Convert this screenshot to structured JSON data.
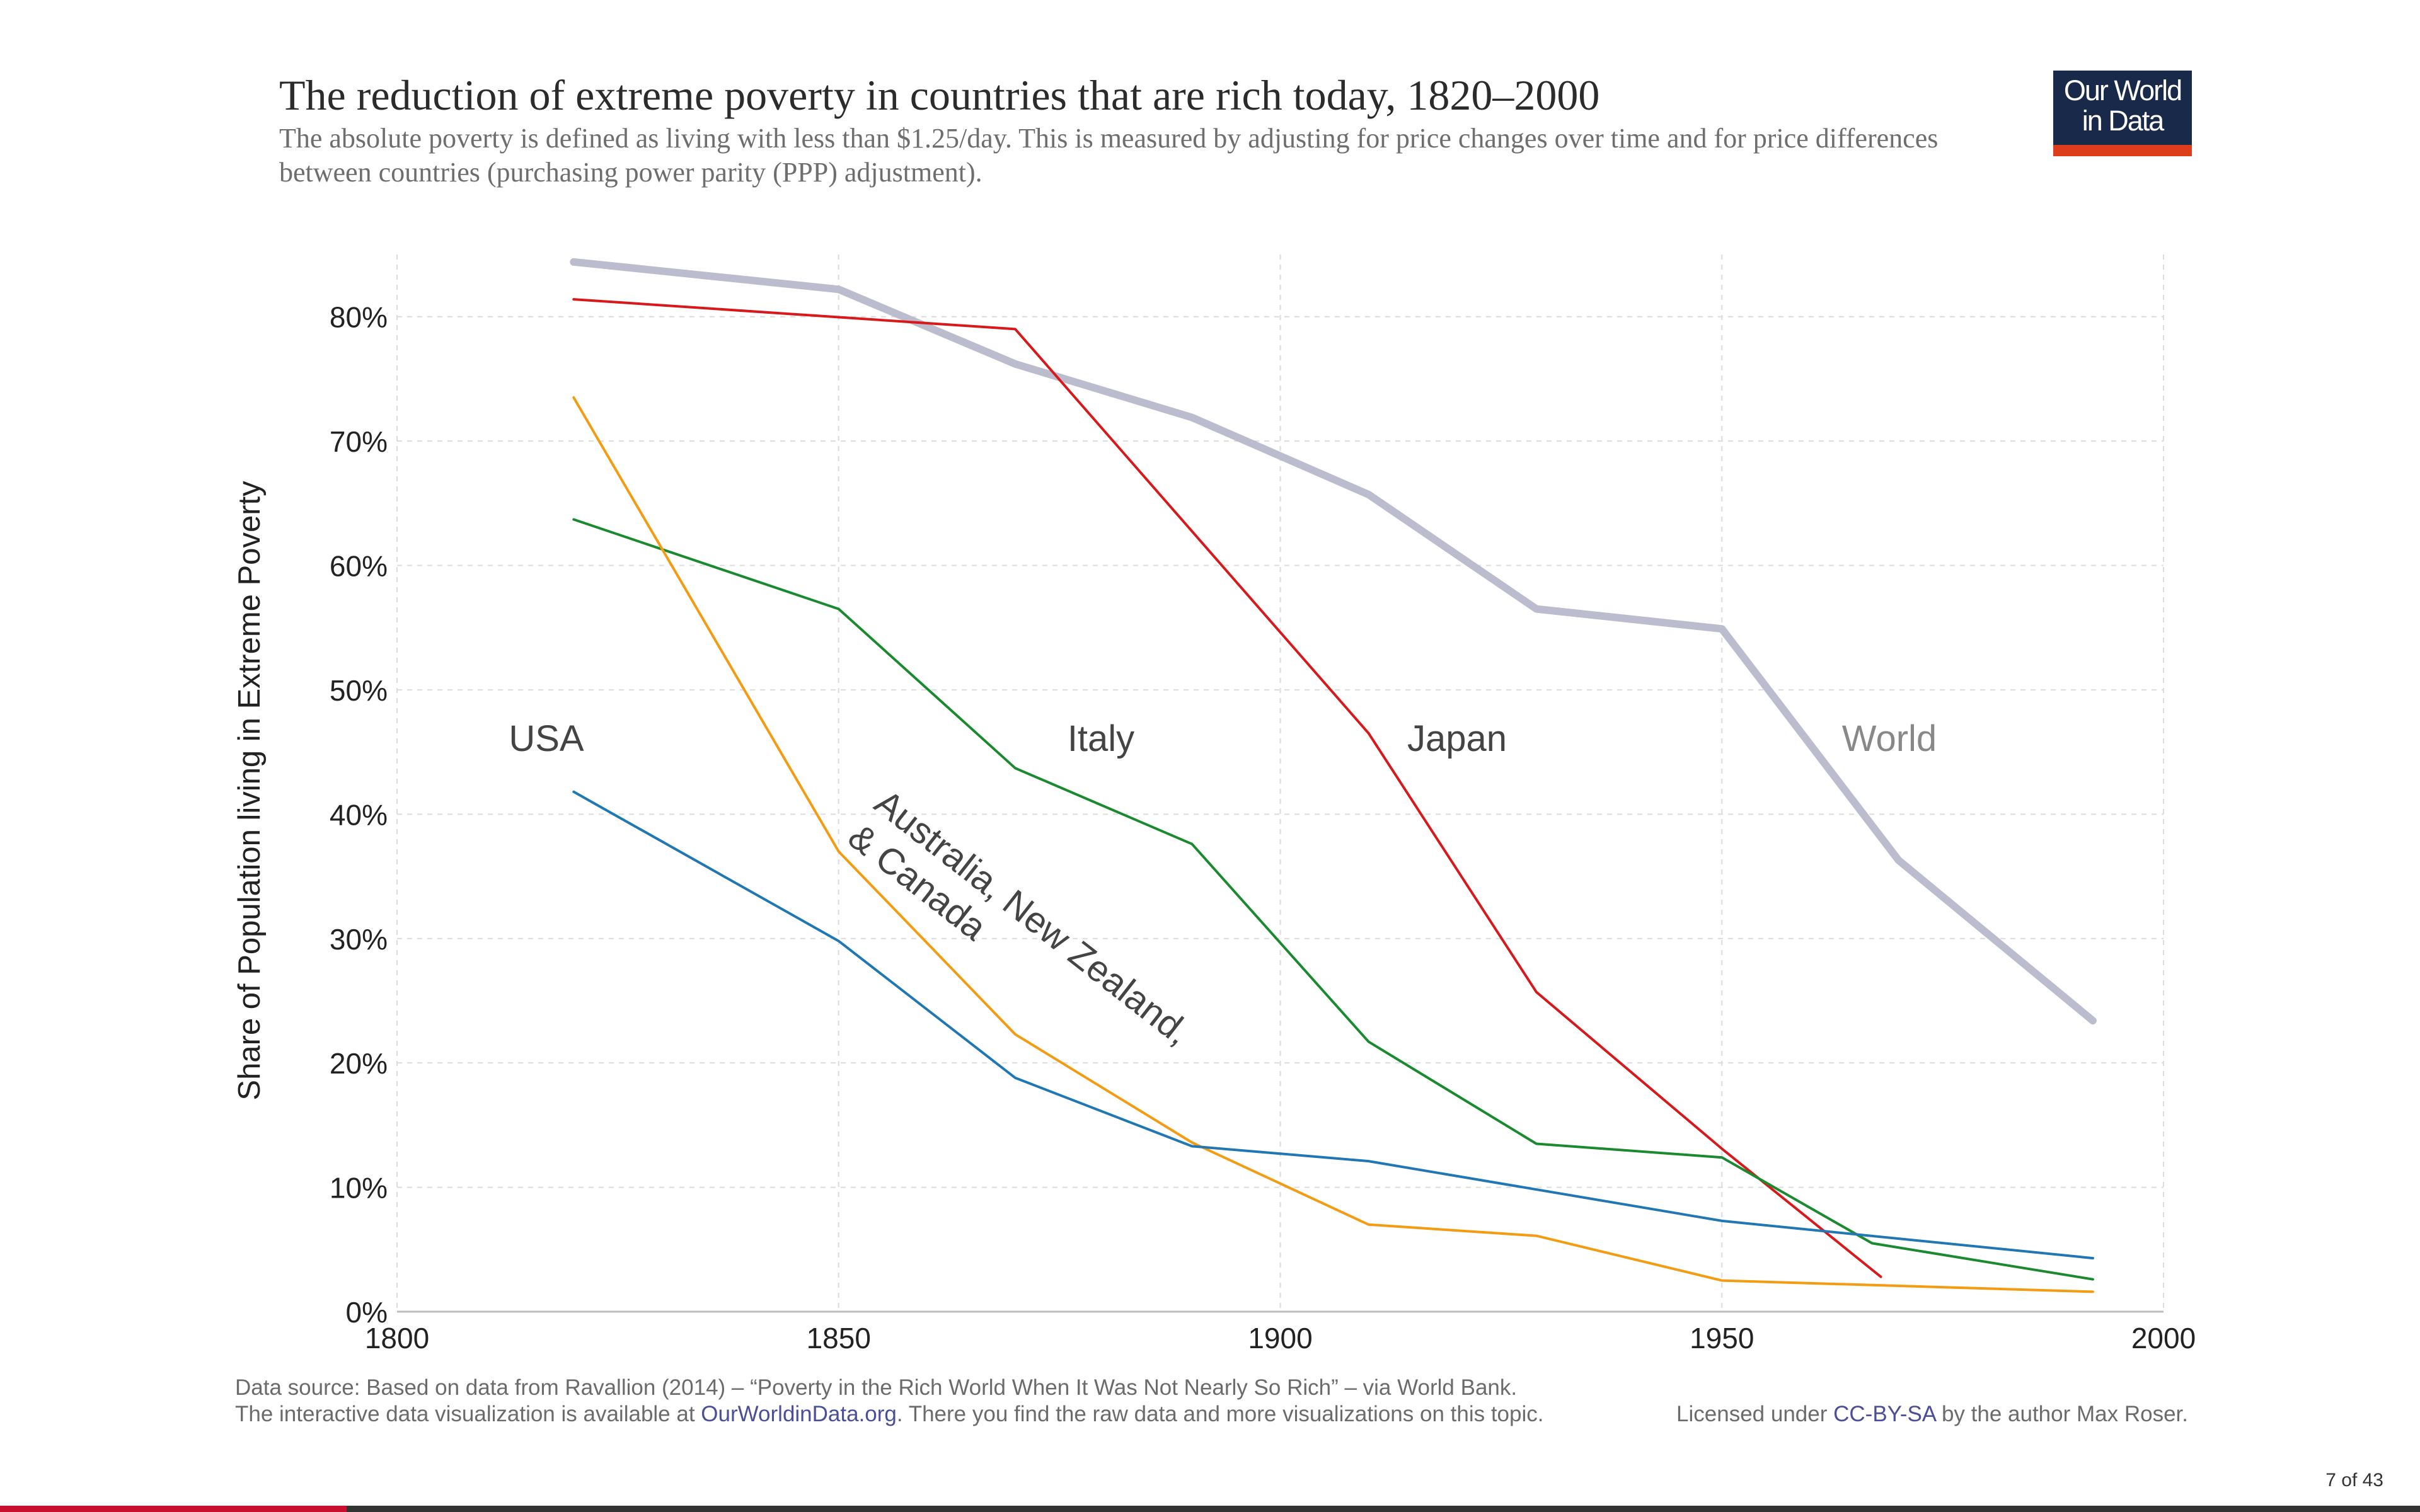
{
  "title": "The reduction of extreme poverty in countries that are rich today, 1820–2000",
  "subtitle": "The absolute poverty is defined as living with less than $1.25/day. This is measured by adjusting for price changes over time and for price differences between countries (purchasing power parity (PPP) adjustment).",
  "logo": {
    "line1": "Our World",
    "line2": "in Data",
    "bg_color": "#18294a",
    "accent_color": "#dc3e1b"
  },
  "chart_data": {
    "type": "line",
    "title": "The reduction of extreme poverty in countries that are rich today, 1820–2000",
    "xlabel": "",
    "ylabel": "Share of Population living in Extreme Poverty",
    "xlim": [
      1800,
      2000
    ],
    "ylim": [
      0,
      85
    ],
    "xticks": [
      1800,
      1850,
      1900,
      1950,
      2000
    ],
    "yticks": [
      0,
      10,
      20,
      30,
      40,
      50,
      60,
      70,
      80
    ],
    "ytick_suffix": "%",
    "grid": true,
    "series": [
      {
        "name": "World",
        "color": "#bcbccf",
        "width": 12,
        "x": [
          1820,
          1850,
          1870,
          1890,
          1910,
          1929,
          1950,
          1970,
          1992
        ],
        "y": [
          84.4,
          82.2,
          76.2,
          71.9,
          65.7,
          56.5,
          54.9,
          36.3,
          23.4
        ]
      },
      {
        "name": "Japan",
        "color": "#d7191c",
        "width": 4,
        "x": [
          1820,
          1870,
          1910,
          1929,
          1950,
          1968
        ],
        "y": [
          81.4,
          79.0,
          46.5,
          25.7,
          13.1,
          2.8
        ]
      },
      {
        "name": "Italy",
        "color": "#1a8a2e",
        "width": 4,
        "x": [
          1820,
          1850,
          1870,
          1890,
          1910,
          1929,
          1950,
          1967,
          1992
        ],
        "y": [
          63.7,
          56.5,
          43.7,
          37.6,
          21.7,
          13.5,
          12.4,
          5.5,
          2.6
        ]
      },
      {
        "name": "Australia, New Zealand, & Canada",
        "color": "#f39c12",
        "width": 4,
        "x": [
          1820,
          1850,
          1870,
          1890,
          1910,
          1929,
          1950,
          1992
        ],
        "y": [
          73.5,
          37.0,
          22.3,
          13.6,
          7.0,
          6.1,
          2.5,
          1.6
        ]
      },
      {
        "name": "USA",
        "color": "#1f77b4",
        "width": 4,
        "x": [
          1820,
          1850,
          1870,
          1890,
          1910,
          1950,
          1992
        ],
        "y": [
          41.8,
          29.8,
          18.8,
          13.3,
          12.1,
          7.3,
          4.3
        ]
      }
    ],
    "annotations": [
      {
        "text": "USA",
        "color": "#444444"
      },
      {
        "text": "Italy",
        "color": "#444444"
      },
      {
        "text": "Japan",
        "color": "#444444"
      },
      {
        "text": "World",
        "color": "#888888"
      },
      {
        "text": "Australia, New Zealand,",
        "color": "#444444"
      },
      {
        "text": "& Canada",
        "color": "#444444"
      }
    ]
  },
  "footer": {
    "source": "Data source: Based on data from Ravallion (2014) – “Poverty in the Rich World When It Was Not Nearly So Rich” – via World Bank.",
    "interactive_prefix": "The interactive data visualization is available at ",
    "interactive_link": "OurWorldinData.org",
    "interactive_suffix": ". There you find the raw data and more visualizations on this topic.",
    "license_prefix": "Licensed under ",
    "license_link": "CC-BY-SA",
    "license_suffix": " by the author Max Roser."
  },
  "page_number": "7 of 43"
}
